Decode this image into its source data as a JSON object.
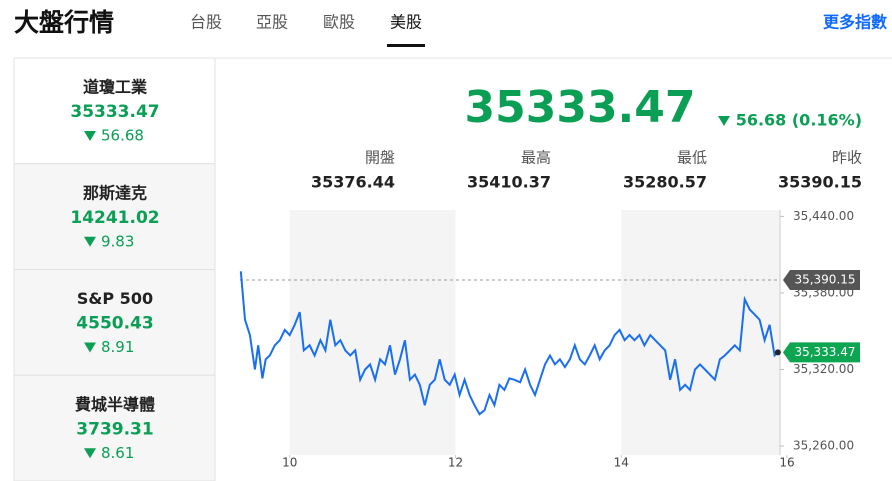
{
  "header": {
    "title": "大盤行情",
    "tabs": [
      "台股",
      "亞股",
      "歐股",
      "美股"
    ],
    "active_tab": 3,
    "more_link": "更多指數"
  },
  "sidebar": [
    {
      "name": "道瓊工業",
      "value": "35333.47",
      "change": "56.68"
    },
    {
      "name": "那斯達克",
      "value": "14241.02",
      "change": "9.83"
    },
    {
      "name": "S&P 500",
      "value": "4550.43",
      "change": "8.91"
    },
    {
      "name": "費城半導體",
      "value": "3739.31",
      "change": "8.61"
    }
  ],
  "quote": {
    "price": "35333.47",
    "change": "56.68 (0.16%)",
    "stats": [
      {
        "label": "開盤",
        "value": "35376.44"
      },
      {
        "label": "最高",
        "value": "35410.37"
      },
      {
        "label": "最低",
        "value": "35280.57"
      },
      {
        "label": "昨收",
        "value": "35390.15"
      }
    ]
  },
  "chart": {
    "type": "line",
    "color": "#1a6ff0",
    "x": [
      9.41,
      9.46,
      9.52,
      9.58,
      9.62,
      9.67,
      9.71,
      9.76,
      9.82,
      9.88,
      9.94,
      10.0,
      10.06,
      10.12,
      10.17,
      10.24,
      10.3,
      10.37,
      10.43,
      10.49,
      10.55,
      10.61,
      10.67,
      10.73,
      10.79,
      10.85,
      10.91,
      10.97,
      11.03,
      11.09,
      11.15,
      11.21,
      11.27,
      11.33,
      11.39,
      11.45,
      11.51,
      11.57,
      11.63,
      11.69,
      11.75,
      11.81,
      11.87,
      11.93,
      11.99,
      12.05,
      12.11,
      12.17,
      12.23,
      12.29,
      12.35,
      12.41,
      12.47,
      12.53,
      12.59,
      12.65,
      12.71,
      12.78,
      12.84,
      12.9,
      12.96,
      13.02,
      13.08,
      13.14,
      13.2,
      13.26,
      13.32,
      13.38,
      13.44,
      13.5,
      13.56,
      13.62,
      13.68,
      13.74,
      13.8,
      13.86,
      13.92,
      13.98,
      14.04,
      14.1,
      14.16,
      14.22,
      14.28,
      14.35,
      14.41,
      14.47,
      14.53,
      14.59,
      14.65,
      14.71,
      14.77,
      14.83,
      14.89,
      14.95,
      15.01,
      15.07,
      15.13,
      15.19,
      15.25,
      15.31,
      15.37,
      15.43,
      15.49,
      15.55,
      15.61,
      15.67,
      15.73,
      15.79,
      15.85,
      15.89
    ],
    "values": [
      35397,
      35359,
      35347,
      35320,
      35339,
      35313,
      35328,
      35331,
      35339,
      35343,
      35351,
      35347,
      35355,
      35365,
      35335,
      35339,
      35331,
      35343,
      35335,
      35359,
      35339,
      35343,
      35335,
      35331,
      35335,
      35312,
      35320,
      35324,
      35312,
      35328,
      35324,
      35339,
      35316,
      35328,
      35343,
      35312,
      35316,
      35308,
      35292,
      35308,
      35312,
      35328,
      35312,
      35308,
      35316,
      35300,
      35312,
      35300,
      35292,
      35285,
      35288,
      35300,
      35292,
      35308,
      35304,
      35313,
      35312,
      35310,
      35320,
      35308,
      35300,
      35312,
      35324,
      35331,
      35324,
      35328,
      35322,
      35328,
      35339,
      35328,
      35324,
      35331,
      35339,
      35328,
      35335,
      35339,
      35347,
      35351,
      35343,
      35347,
      35343,
      35347,
      35339,
      35347,
      35343,
      35339,
      35335,
      35312,
      35328,
      35304,
      35308,
      35304,
      35320,
      35324,
      35320,
      35316,
      35312,
      35328,
      35331,
      35335,
      35339,
      35335,
      35375,
      35367,
      35363,
      35359,
      35343,
      35355,
      35331,
      35333.47
    ],
    "xlim": [
      9.4,
      16
    ],
    "xticks": [
      10,
      12,
      14,
      16
    ],
    "ylim": [
      35253,
      35445
    ],
    "yticks": [
      {
        "value": 35260,
        "label": "35,260.00"
      },
      {
        "value": 35320,
        "label": "35,320.00"
      },
      {
        "value": 35380,
        "label": "35,380.00"
      },
      {
        "value": 35440,
        "label": "35,440.00"
      }
    ],
    "reference_line": {
      "value": 35390.15,
      "label": "35,390.15"
    },
    "last_label": {
      "value": 35333.47,
      "label": "35,333.47"
    }
  }
}
